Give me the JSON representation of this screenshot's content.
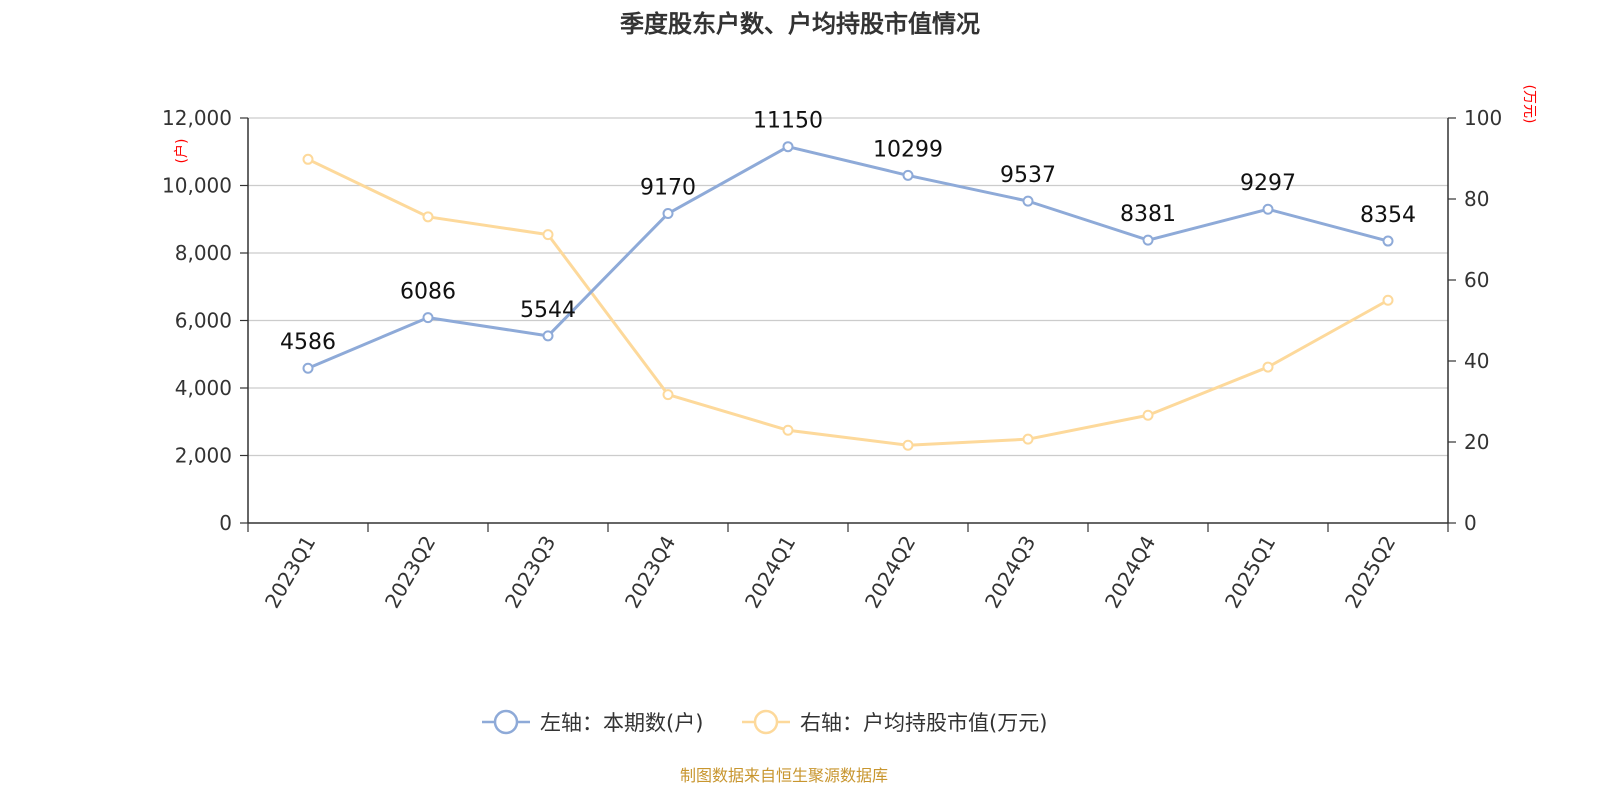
{
  "chart_data": {
    "type": "line",
    "title": "季度股东户数、户均持股市值情况",
    "categories": [
      "2023Q1",
      "2023Q2",
      "2023Q3",
      "2023Q4",
      "2024Q1",
      "2024Q2",
      "2024Q3",
      "2024Q4",
      "2025Q1",
      "2025Q2"
    ],
    "left_axis": {
      "unit": "(户)",
      "ylim": [
        0,
        12000
      ],
      "ticks": [
        "0",
        "2,000",
        "4,000",
        "6,000",
        "8,000",
        "10,000",
        "12,000"
      ],
      "tick_values": [
        0,
        2000,
        4000,
        6000,
        8000,
        10000,
        12000
      ]
    },
    "right_axis": {
      "unit": "(万元)",
      "ylim": [
        0,
        100
      ],
      "ticks": [
        "0",
        "20",
        "40",
        "60",
        "80",
        "100"
      ],
      "tick_values": [
        0,
        20,
        40,
        60,
        80,
        100
      ]
    },
    "series": [
      {
        "name": "左轴：本期数(户)",
        "axis": "left",
        "color": "#8eaad8",
        "values": [
          4586,
          6086,
          5544,
          9170,
          11150,
          10299,
          9537,
          8381,
          9297,
          8354
        ],
        "labels": [
          "4586",
          "6086",
          "5544",
          "9170",
          "11150",
          "10299",
          "9537",
          "8381",
          "9297",
          "8354"
        ]
      },
      {
        "name": "右轴：户均持股市值(万元)",
        "axis": "right",
        "color": "#fdd99b",
        "values": [
          89.8,
          75.6,
          71.2,
          31.7,
          22.9,
          19.2,
          20.7,
          26.6,
          38.5,
          55.0
        ]
      }
    ],
    "grid": true,
    "legend": "bottom-center"
  },
  "source_text": "制图数据来自恒生聚源数据库"
}
